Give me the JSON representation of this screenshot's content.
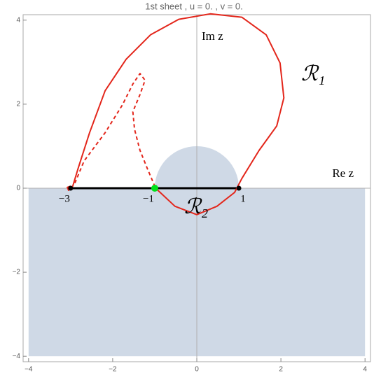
{
  "chart_data": {
    "type": "complex-plane",
    "title": "1st sheet , u = 0.  , v = 0.",
    "xlim": [
      -4.13,
      4.13
    ],
    "ylim": [
      -4.13,
      4.13
    ],
    "xticks": [
      {
        "value": -4,
        "label": "−4"
      },
      {
        "value": -2,
        "label": "−2"
      },
      0,
      2,
      4
    ],
    "yticks": [
      {
        "value": -4,
        "label": "−4"
      },
      {
        "value": -2,
        "label": "−2"
      },
      0,
      2,
      4
    ],
    "x_axis_label": "Re z",
    "y_axis_label": "Im z",
    "shaded": {
      "color": "#cfd9e6",
      "disk": {
        "cx": 0,
        "cy": 0,
        "r": 1
      },
      "rect": {
        "x": [
          -4,
          4
        ],
        "y": [
          -4,
          0
        ]
      }
    },
    "segment": {
      "x": [
        -3,
        1
      ],
      "y": [
        0,
        0
      ],
      "color": "#000000"
    },
    "series": [
      {
        "color": "#e3261b",
        "dashed": false,
        "x": [
          -3.0,
          -3.08,
          -3.05,
          -2.95,
          -2.82,
          -2.55,
          -2.18,
          -1.68,
          -1.1,
          -0.43,
          0.32,
          1.07,
          1.65,
          1.98,
          2.07,
          1.9,
          1.48,
          1.07,
          0.9,
          0.48,
          0.0,
          -0.52,
          -0.98
        ],
        "y": [
          0.05,
          0.02,
          -0.05,
          0.05,
          0.48,
          1.32,
          2.32,
          3.07,
          3.65,
          4.02,
          4.15,
          4.07,
          3.65,
          2.98,
          2.15,
          1.48,
          0.9,
          0.23,
          -0.1,
          -0.43,
          -0.63,
          -0.43,
          0.0
        ]
      },
      {
        "color": "#e3261b",
        "dashed": true,
        "x": [
          -2.9,
          -2.68,
          -2.18,
          -1.77,
          -1.52,
          -1.35,
          -1.23,
          -1.35,
          -1.52,
          -1.48,
          -1.35,
          -1.18,
          -0.98
        ],
        "y": [
          0.12,
          0.65,
          1.32,
          1.98,
          2.48,
          2.73,
          2.57,
          2.23,
          1.82,
          1.4,
          0.9,
          0.48,
          0.0
        ]
      }
    ],
    "points": [
      {
        "x": -3,
        "y": 0,
        "color": "#000000",
        "label": "−3"
      },
      {
        "x": -1,
        "y": 0,
        "color": "#00e01a",
        "label": "−1"
      },
      {
        "x": 1,
        "y": 0,
        "color": "#000000",
        "label": "1"
      }
    ],
    "region_labels": [
      "ℛ₁",
      "ℛ₂"
    ]
  }
}
